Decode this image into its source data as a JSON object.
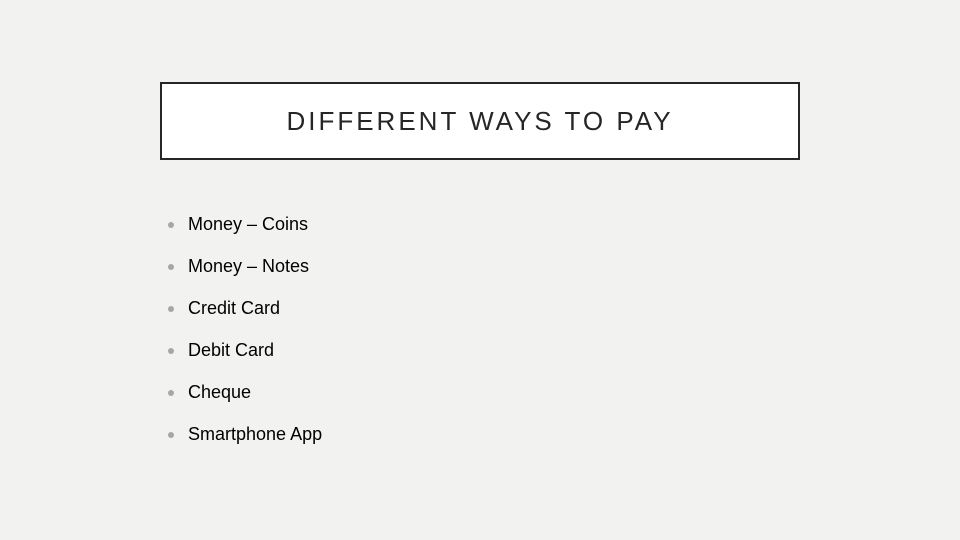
{
  "slide": {
    "title": "DIFFERENT WAYS TO PAY",
    "background_color": "#f2f2f0",
    "title_box": {
      "border_color": "#262626",
      "border_width": 2,
      "background_color": "#ffffff",
      "text_color": "#262626",
      "font_size": 26,
      "letter_spacing": 3
    },
    "bullets": [
      {
        "text": "Money – Coins"
      },
      {
        "text": "Money – Notes"
      },
      {
        "text": "Credit Card"
      },
      {
        "text": "Debit Card"
      },
      {
        "text": "Cheque"
      },
      {
        "text": "Smartphone App"
      }
    ],
    "bullet_style": {
      "dot_color": "#a6a6a6",
      "text_color": "#000000",
      "font_size": 18
    }
  }
}
